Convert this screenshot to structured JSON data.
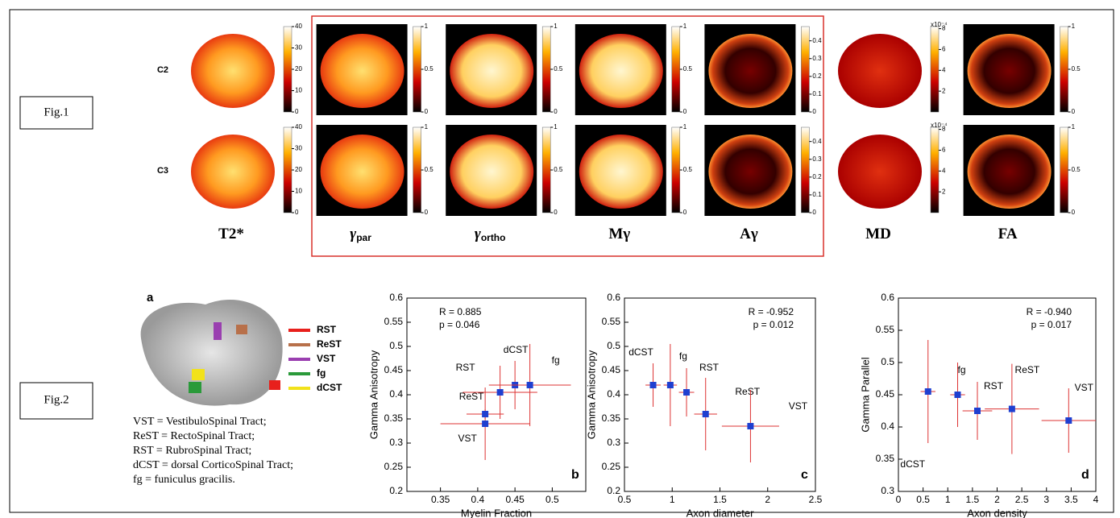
{
  "fig1": {
    "label": "Fig.1",
    "rows": [
      "C2",
      "C3"
    ],
    "columns": [
      {
        "title": "T2*",
        "cbar_lim": [
          0,
          40
        ],
        "cbar_ticks": [
          0,
          10,
          20,
          30,
          40
        ]
      },
      {
        "title": "γ",
        "subscript": "par",
        "cbar_lim": [
          0,
          1
        ],
        "cbar_ticks": [
          0,
          0.5,
          1
        ]
      },
      {
        "title": "γ",
        "subscript": "ortho",
        "cbar_lim": [
          0,
          1
        ],
        "cbar_ticks": [
          0,
          0.5,
          1
        ]
      },
      {
        "title": "Mγ",
        "cbar_lim": [
          0,
          1
        ],
        "cbar_ticks": [
          0,
          0.5,
          1
        ]
      },
      {
        "title": "Aγ",
        "cbar_lim": [
          0,
          0.48
        ],
        "cbar_ticks": [
          0,
          0.1,
          0.2,
          0.3,
          0.4
        ]
      },
      {
        "title": "MD",
        "cbar_lim": [
          0,
          8.2
        ],
        "cbar_ticks": [
          2,
          4,
          6,
          8
        ],
        "cbar_unit": "x10⁻⁴"
      },
      {
        "title": "FA",
        "cbar_lim": [
          0,
          1
        ],
        "cbar_ticks": [
          0,
          0.5,
          1
        ]
      }
    ]
  },
  "fig2": {
    "label": "Fig.2",
    "panel": "a",
    "legend": [
      {
        "name": "RST",
        "color": "#e8201c"
      },
      {
        "name": "ReST",
        "color": "#b8704a"
      },
      {
        "name": "VST",
        "color": "#9a3fb0"
      },
      {
        "name": "fg",
        "color": "#2a9a3a"
      },
      {
        "name": "dCST",
        "color": "#f2e21a"
      }
    ],
    "definitions": [
      "VST = VestibuloSpinal Tract;",
      "ReST = RectoSpinal Tract;",
      "RST = RubroSpinal Tract;",
      "dCST = dorsal CorticoSpinal Tract;",
      "fg = funiculus gracilis."
    ]
  },
  "chart_data": [
    {
      "type": "scatter",
      "xlabel": "Myelin Fraction",
      "ylabel": "Gamma Anisotropy",
      "xlim": [
        0.305,
        0.545
      ],
      "ylim": [
        0.2,
        0.6
      ],
      "xticks": [
        0.35,
        0.4,
        0.45,
        0.5
      ],
      "yticks": [
        0.2,
        0.25,
        0.3,
        0.35,
        0.4,
        0.45,
        0.5,
        0.55,
        0.6
      ],
      "annotations": [
        "R = 0.885",
        "p = 0.046"
      ],
      "panel": "b",
      "color": "#1f3fd0",
      "labels": [
        "VST",
        "ReST",
        "RST",
        "dCST",
        "fg"
      ],
      "x": [
        0.41,
        0.41,
        0.43,
        0.45,
        0.47
      ],
      "values": [
        0.34,
        0.36,
        0.405,
        0.42,
        0.42
      ],
      "xerr": [
        0.06,
        0.025,
        0.05,
        0.02,
        0.055
      ],
      "yerr": [
        0.075,
        0.01,
        0.055,
        0.05,
        0.085
      ]
    },
    {
      "type": "scatter",
      "xlabel": "Axon diameter",
      "ylabel": "Gamma Anisotropy",
      "xlim": [
        0.5,
        2.5
      ],
      "ylim": [
        0.2,
        0.6
      ],
      "xticks": [
        0.5,
        1,
        1.5,
        2,
        2.5
      ],
      "yticks": [
        0.2,
        0.25,
        0.3,
        0.35,
        0.4,
        0.45,
        0.5,
        0.55,
        0.6
      ],
      "annotations": [
        "R = -0.952",
        "p = 0.012"
      ],
      "panel": "c",
      "color": "#1f3fd0",
      "labels": [
        "dCST",
        "fg",
        "RST",
        "ReST",
        "VST"
      ],
      "x": [
        0.8,
        0.98,
        1.15,
        1.35,
        1.82
      ],
      "values": [
        0.42,
        0.42,
        0.405,
        0.36,
        0.335
      ],
      "xerr": [
        0.08,
        0.07,
        0.08,
        0.12,
        0.3
      ],
      "yerr": [
        0.045,
        0.085,
        0.05,
        0.075,
        0.075
      ]
    },
    {
      "type": "scatter",
      "xlabel": "Axon density",
      "ylabel": "Gamma Parallel",
      "xlim": [
        0,
        4
      ],
      "ylim": [
        0.3,
        0.6
      ],
      "xticks": [
        0,
        0.5,
        1,
        1.5,
        2,
        2.5,
        3,
        3.5,
        4
      ],
      "yticks": [
        0.3,
        0.35,
        0.4,
        0.45,
        0.5,
        0.55,
        0.6
      ],
      "annotations": [
        "R = -0.940",
        "p = 0.017"
      ],
      "panel": "d",
      "color": "#1f3fd0",
      "labels": [
        "dCST",
        "fg",
        "RST",
        "ReST",
        "VST"
      ],
      "x": [
        0.6,
        1.2,
        1.6,
        2.3,
        3.45
      ],
      "values": [
        0.455,
        0.45,
        0.425,
        0.428,
        0.41
      ],
      "xerr": [
        0.15,
        0.15,
        0.3,
        0.55,
        0.55
      ],
      "yerr": [
        0.08,
        0.05,
        0.045,
        0.07,
        0.05
      ]
    }
  ]
}
